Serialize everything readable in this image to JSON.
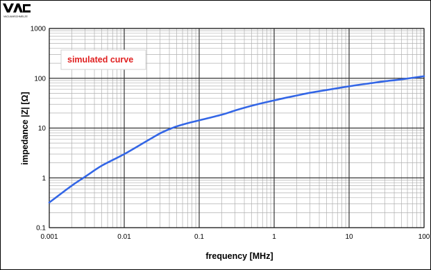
{
  "brand": {
    "logo_text": "VAC",
    "logo_subtext": "VACUUMSCHMELZE"
  },
  "colors": {
    "curve": "#3366e6",
    "annotation": "#e02020",
    "annotation_border": "#d0d0d0",
    "major_grid": "#333333",
    "minor_grid": "#b0b0b0"
  },
  "chart_data": {
    "type": "line",
    "xlabel": "frequency [MHz]",
    "ylabel": "impedance |Z| [Ω]",
    "xscale": "log",
    "yscale": "log",
    "xlim": [
      0.001,
      100
    ],
    "ylim": [
      0.1,
      1000
    ],
    "grid": true,
    "x_tick_labels": [
      "0.001",
      "0.01",
      "0.1",
      "1",
      "10",
      "100"
    ],
    "y_tick_labels": [
      "0.1",
      "1",
      "10",
      "100",
      "1000"
    ],
    "annotation": "simulated curve",
    "series": [
      {
        "x": [
          0.001,
          0.002,
          0.003,
          0.005,
          0.01,
          0.02,
          0.03,
          0.04,
          0.05,
          0.07,
          0.1,
          0.2,
          0.3,
          0.5,
          1,
          2,
          3,
          5,
          10,
          20,
          30,
          50,
          100
        ],
        "y": [
          0.32,
          0.7,
          1.05,
          1.75,
          3.0,
          5.5,
          7.8,
          9.5,
          10.8,
          12.5,
          14.3,
          18.5,
          22.5,
          28,
          36,
          45,
          51,
          58,
          69,
          80,
          87,
          95,
          110
        ]
      }
    ]
  }
}
